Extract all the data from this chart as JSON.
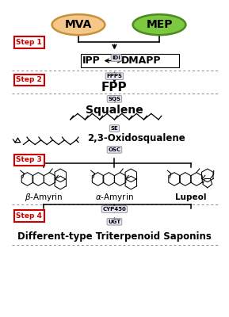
{
  "bg_color": "#ffffff",
  "mva_color": "#f5c88a",
  "mva_edge_color": "#c8903a",
  "mep_color": "#7cc840",
  "mep_edge_color": "#4a8a20",
  "step_box_color": "#cc0000",
  "step_text_color": "#cc0000",
  "enzyme_box_color": "#e8e8f8",
  "enzyme_edge_color": "#888888",
  "arrow_color": "#000000",
  "dashed_line_color": "#888888",
  "steps": [
    "Step 1",
    "Step 2",
    "Step 3",
    "Step 4"
  ],
  "enzymes": [
    "IDI",
    "FPPS",
    "SQS",
    "SE",
    "OSC",
    "CYP450",
    "UGT"
  ],
  "final_product": "Different-type Triterpenoid Saponins",
  "title_mva": "MVA",
  "title_mep": "MEP"
}
